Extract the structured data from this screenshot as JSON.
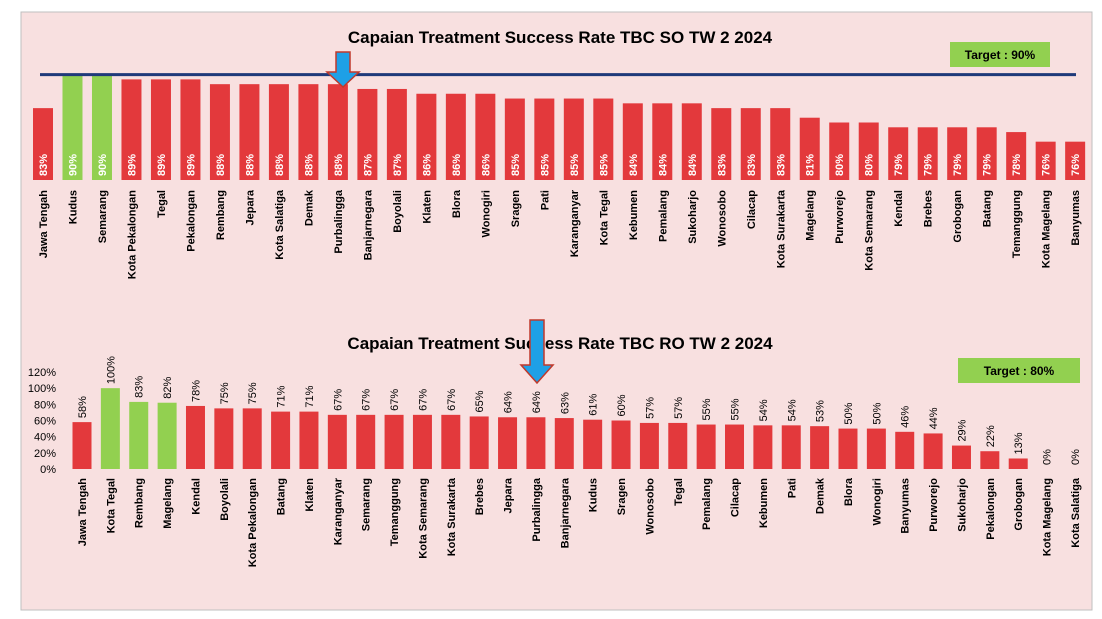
{
  "chart_data": [
    {
      "type": "bar",
      "title": "Capaian Treatment Success Rate TBC SO TW 2 2024",
      "categories": [
        "Jawa Tengah",
        "Kudus",
        "Semarang",
        "Kota Pekalongan",
        "Tegal",
        "Pekalongan",
        "Rembang",
        "Jepara",
        "Kota Salatiga",
        "Demak",
        "Purbalingga",
        "Banjarnegara",
        "Boyolali",
        "Klaten",
        "Blora",
        "Wonogiri",
        "Sragen",
        "Pati",
        "Karanganyar",
        "Kota Tegal",
        "Kebumen",
        "Pemalang",
        "Sukoharjo",
        "Wonosobo",
        "Cilacap",
        "Kota Surakarta",
        "Magelang",
        "Purworejo",
        "Kota Semarang",
        "Kendal",
        "Brebes",
        "Grobogan",
        "Batang",
        "Temanggung",
        "Kota Magelang",
        "Banyumas"
      ],
      "values": [
        83,
        90,
        90,
        89,
        89,
        89,
        88,
        88,
        88,
        88,
        88,
        87,
        87,
        86,
        86,
        86,
        85,
        85,
        85,
        85,
        84,
        84,
        84,
        83,
        83,
        83,
        81,
        80,
        80,
        79,
        79,
        79,
        79,
        78,
        76,
        76
      ],
      "value_labels": [
        "83%",
        "90%",
        "90%",
        "89%",
        "89%",
        "89%",
        "88%",
        "88%",
        "88%",
        "88%",
        "88%",
        "87%",
        "87%",
        "86%",
        "86%",
        "86%",
        "85%",
        "85%",
        "85%",
        "85%",
        "84%",
        "84%",
        "84%",
        "83%",
        "83%",
        "83%",
        "81%",
        "80%",
        "80%",
        "79%",
        "79%",
        "79%",
        "79%",
        "78%",
        "76%",
        "76%"
      ],
      "colors": [
        "#e3393c",
        "#92d050",
        "#92d050",
        "#e3393c",
        "#e3393c",
        "#e3393c",
        "#e3393c",
        "#e3393c",
        "#e3393c",
        "#e3393c",
        "#e3393c",
        "#e3393c",
        "#e3393c",
        "#e3393c",
        "#e3393c",
        "#e3393c",
        "#e3393c",
        "#e3393c",
        "#e3393c",
        "#e3393c",
        "#e3393c",
        "#e3393c",
        "#e3393c",
        "#e3393c",
        "#e3393c",
        "#e3393c",
        "#e3393c",
        "#e3393c",
        "#e3393c",
        "#e3393c",
        "#e3393c",
        "#e3393c",
        "#e3393c",
        "#e3393c",
        "#e3393c",
        "#e3393c"
      ],
      "ylim": [
        68,
        92
      ],
      "target_line": 90,
      "target_label": "Target : 90%"
    },
    {
      "type": "bar",
      "title": "Capaian Treatment Success Rate TBC RO TW 2 2024",
      "categories": [
        "Jawa Tengah",
        "Kota Tegal",
        "Rembang",
        "Magelang",
        "Kendal",
        "Boyolali",
        "Kota Pekalongan",
        "Batang",
        "Klaten",
        "Karanganyar",
        "Semarang",
        "Temanggung",
        "Kota Semarang",
        "Kota Surakarta",
        "Brebes",
        "Jepara",
        "Purbalingga",
        "Banjarnegara",
        "Kudus",
        "Sragen",
        "Wonosobo",
        "Tegal",
        "Pemalang",
        "Cilacap",
        "Kebumen",
        "Pati",
        "Demak",
        "Blora",
        "Wonogiri",
        "Banyumas",
        "Purworejo",
        "Sukoharjo",
        "Pekalongan",
        "Grobogan",
        "Kota Magelang",
        "Kota Salatiga"
      ],
      "values": [
        58,
        100,
        83,
        82,
        78,
        75,
        75,
        71,
        71,
        67,
        67,
        67,
        67,
        67,
        65,
        64,
        64,
        63,
        61,
        60,
        57,
        57,
        55,
        55,
        54,
        54,
        53,
        50,
        50,
        46,
        44,
        29,
        22,
        13,
        0,
        0
      ],
      "value_labels": [
        "58%",
        "100%",
        "83%",
        "82%",
        "78%",
        "75%",
        "75%",
        "71%",
        "71%",
        "67%",
        "67%",
        "67%",
        "67%",
        "67%",
        "65%",
        "64%",
        "64%",
        "63%",
        "61%",
        "60%",
        "57%",
        "57%",
        "55%",
        "55%",
        "54%",
        "54%",
        "53%",
        "50%",
        "50%",
        "46%",
        "44%",
        "29%",
        "22%",
        "13%",
        "0%",
        "0%"
      ],
      "colors": [
        "#e3393c",
        "#92d050",
        "#92d050",
        "#92d050",
        "#e3393c",
        "#e3393c",
        "#e3393c",
        "#e3393c",
        "#e3393c",
        "#e3393c",
        "#e3393c",
        "#e3393c",
        "#e3393c",
        "#e3393c",
        "#e3393c",
        "#e3393c",
        "#e3393c",
        "#e3393c",
        "#e3393c",
        "#e3393c",
        "#e3393c",
        "#e3393c",
        "#e3393c",
        "#e3393c",
        "#e3393c",
        "#e3393c",
        "#e3393c",
        "#e3393c",
        "#e3393c",
        "#e3393c",
        "#e3393c",
        "#e3393c",
        "#e3393c",
        "#e3393c",
        "#e3393c",
        "#e3393c"
      ],
      "ylim": [
        0,
        120
      ],
      "yticks": [
        {
          "value": 0,
          "label": "0%"
        },
        {
          "value": 20,
          "label": "20%"
        },
        {
          "value": 40,
          "label": "40%"
        },
        {
          "value": 60,
          "label": "60%"
        },
        {
          "value": 80,
          "label": "80%"
        },
        {
          "value": 100,
          "label": "100%"
        },
        {
          "value": 120,
          "label": "120%"
        }
      ],
      "target_label": "Target : 80%"
    }
  ]
}
